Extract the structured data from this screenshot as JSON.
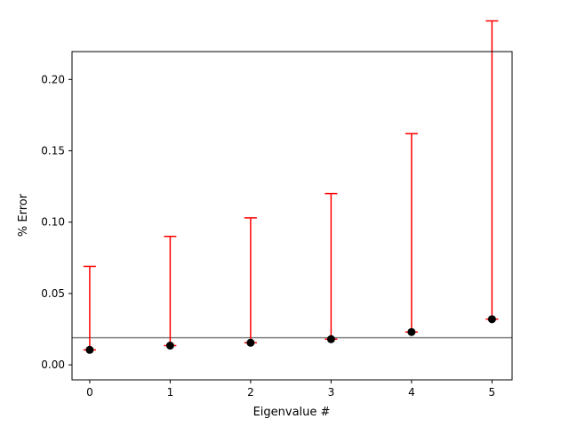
{
  "chart_data": {
    "type": "scatter",
    "title": "",
    "xlabel": "Eigenvalue #",
    "ylabel": "% Error",
    "xlim": [
      -0.22,
      5.25
    ],
    "ylim": [
      -0.0105,
      0.2195
    ],
    "xticks": [
      0,
      1,
      2,
      3,
      4,
      5
    ],
    "xtick_labels": [
      "0",
      "1",
      "2",
      "3",
      "4",
      "5"
    ],
    "yticks": [
      0.0,
      0.05,
      0.1,
      0.15,
      0.2
    ],
    "ytick_labels": [
      "0.00",
      "0.05",
      "0.10",
      "0.15",
      "0.20"
    ],
    "grid": false,
    "series": [
      {
        "x": [
          0,
          1,
          2,
          3,
          4,
          5
        ],
        "y": [
          0.0105,
          0.0135,
          0.0155,
          0.018,
          0.023,
          0.032
        ],
        "error_low": [
          0.0,
          0.0,
          0.0,
          0.0,
          0.0,
          0.0
        ],
        "error_high": [
          0.0585,
          0.0765,
          0.0875,
          0.102,
          0.139,
          0.209
        ],
        "marker_color": "#000000",
        "errorbar_color": "#ff0000"
      }
    ],
    "reference_line": {
      "y": 0.019,
      "color": "#808080"
    }
  }
}
